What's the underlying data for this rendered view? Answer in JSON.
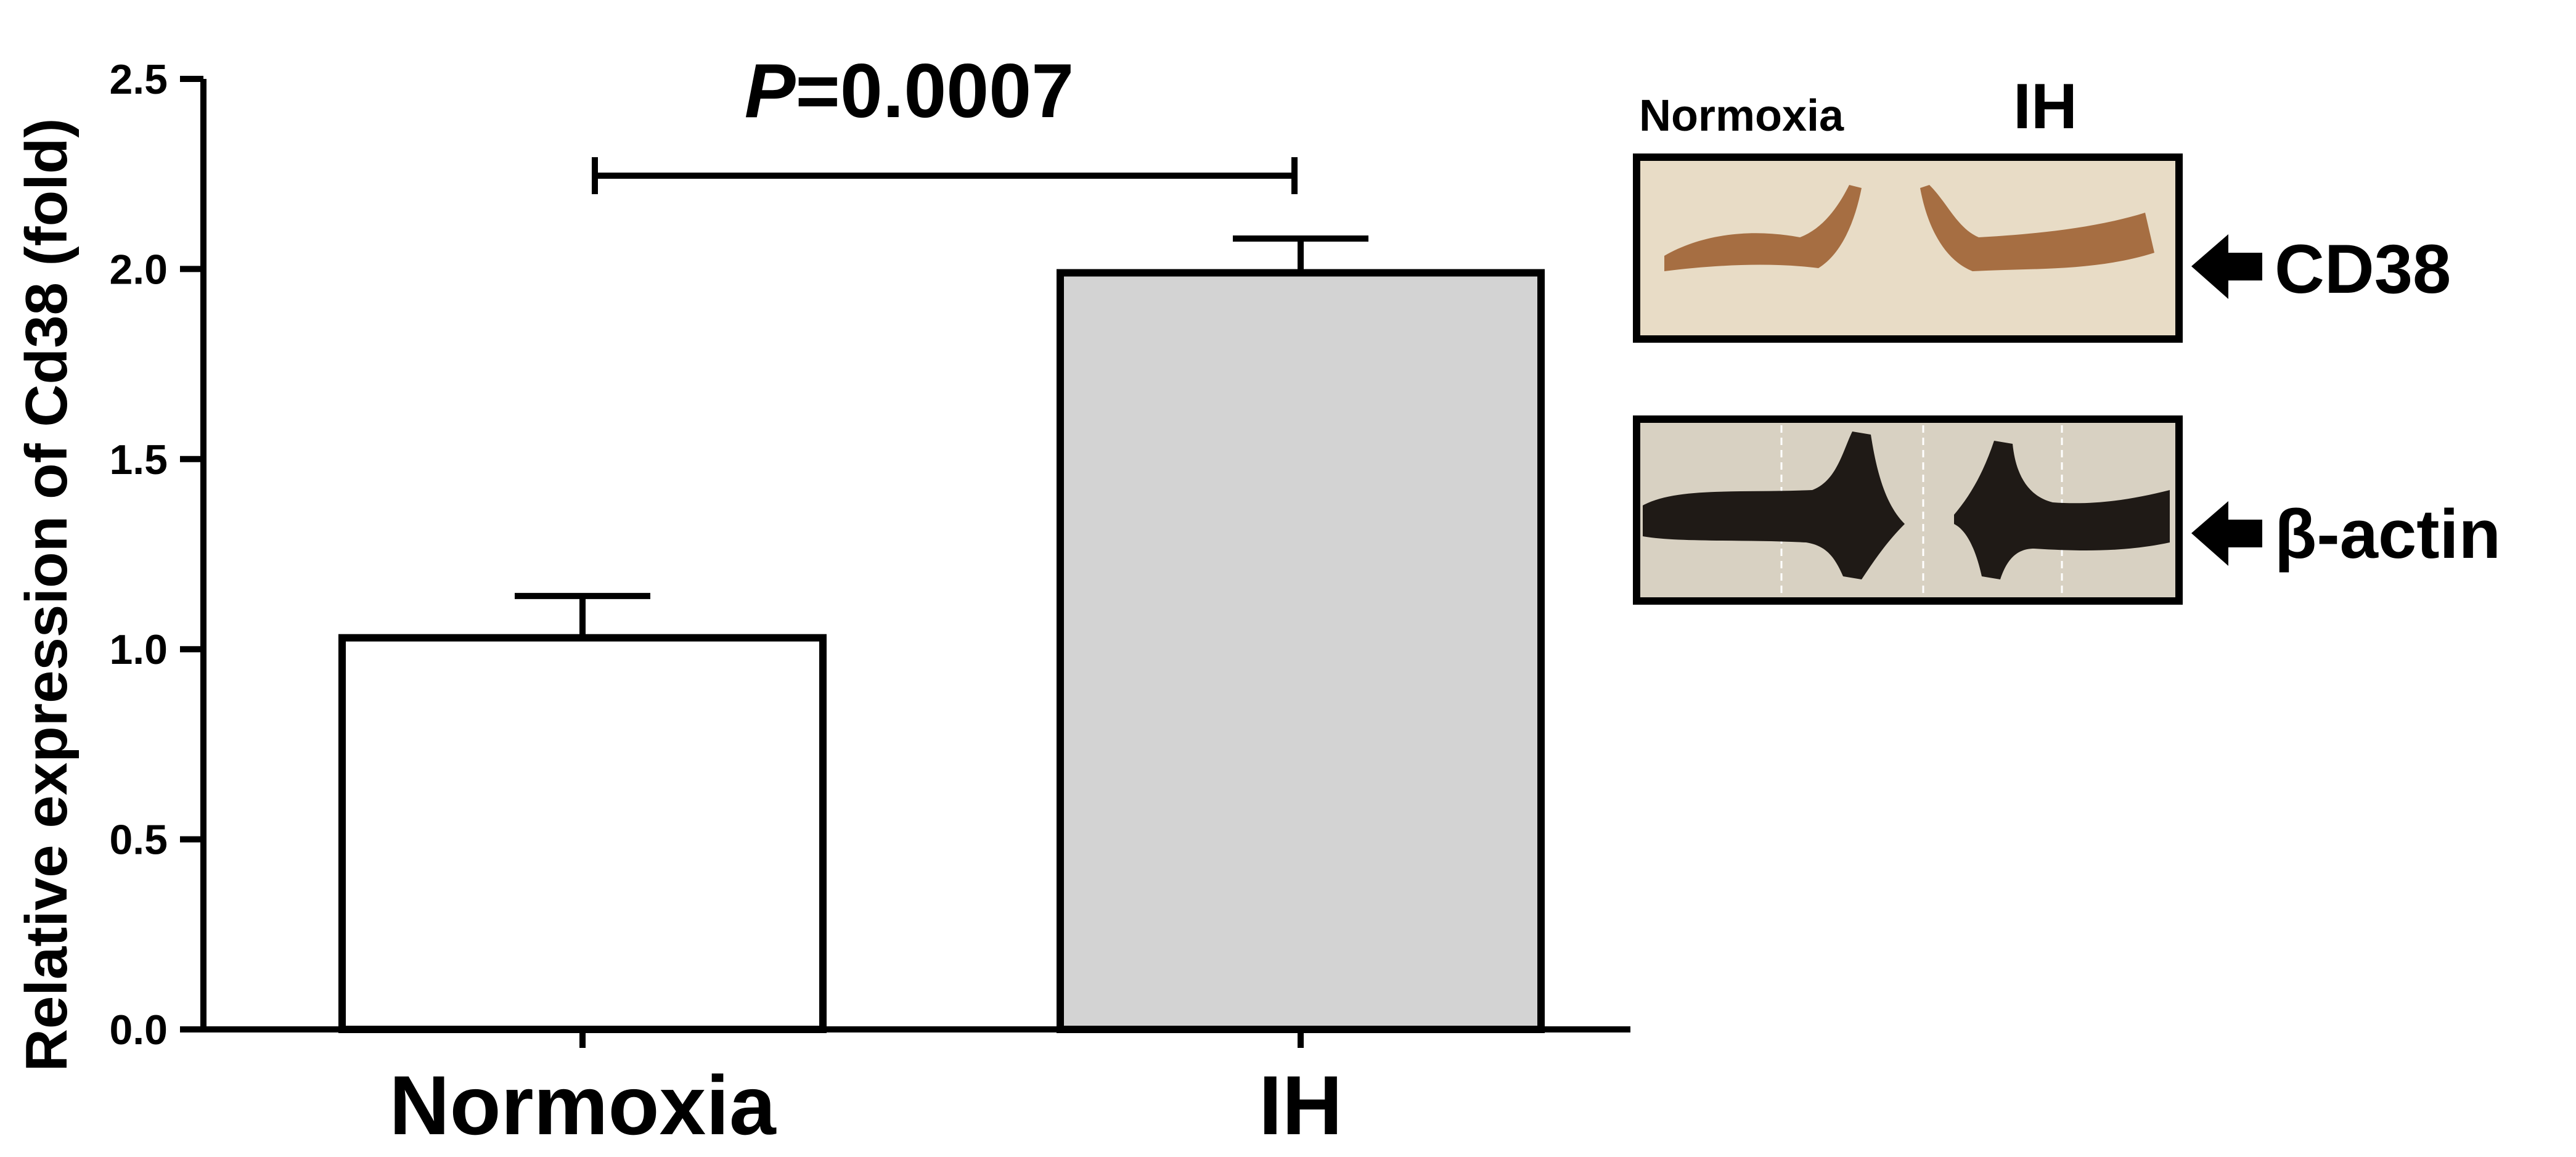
{
  "chart_data": {
    "type": "bar",
    "categories": [
      "Normoxia",
      "IH"
    ],
    "values": [
      1.03,
      1.99
    ],
    "error": [
      0.11,
      0.09
    ],
    "fill_colors": [
      "#ffffff",
      "#d3d3d3"
    ],
    "ylabel": "Relative expression of Cd38 (fold)",
    "ylim": [
      0,
      2.5
    ],
    "yticks": [
      "0.0",
      "0.5",
      "1.0",
      "1.5",
      "2.0",
      "2.5"
    ],
    "significance": {
      "p_prefix": "P",
      "p_value": "=0.0007",
      "between": [
        "Normoxia",
        "IH"
      ]
    }
  },
  "blot": {
    "lane_labels": [
      "Normoxia",
      "IH"
    ],
    "bands": [
      {
        "label": "CD38",
        "band_color": "#9a5a2a",
        "bg_color": "#e8dcc6"
      },
      {
        "label": "β-actin",
        "band_color": "#1f1a16",
        "bg_color": "#d8d1c2"
      }
    ]
  }
}
